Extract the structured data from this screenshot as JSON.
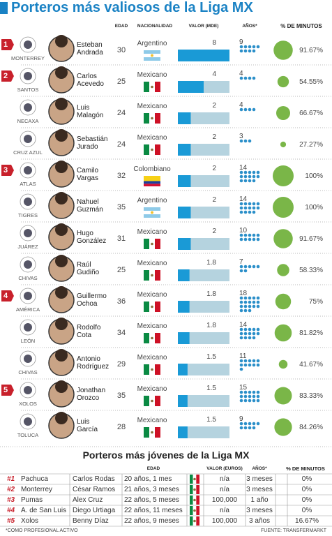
{
  "title": "Porteros más valiosos de la Liga MX",
  "headers": [
    "EDAD",
    "NACIONALIDAD",
    "VALOR (MDE)",
    "AÑOS*",
    "% DE MINUTOS"
  ],
  "players": [
    {
      "rank": 1,
      "club": "MONTERREY",
      "name": "Esteban Andrada",
      "age": 30,
      "nationality": "Argentino",
      "value": 8,
      "years": 9,
      "minutes": 91.67,
      "minutes_label": "91.67%"
    },
    {
      "rank": 2,
      "club": "SANTOS",
      "name": "Carlos Acevedo",
      "age": 25,
      "nationality": "Mexicano",
      "value": 4,
      "years": 4,
      "minutes": 54.55,
      "minutes_label": "54.55%"
    },
    {
      "club": "NECAXA",
      "name": "Luis Malagón",
      "age": 24,
      "nationality": "Mexicano",
      "value": 2,
      "years": 4,
      "minutes": 66.67,
      "minutes_label": "66.67%"
    },
    {
      "club": "CRUZ AZUL",
      "name": "Sebastián Jurado",
      "age": 24,
      "nationality": "Mexicano",
      "value": 2,
      "years": 3,
      "minutes": 27.27,
      "minutes_label": "27.27%"
    },
    {
      "rank": 3,
      "club": "ATLAS",
      "name": "Camilo Vargas",
      "age": 32,
      "nationality": "Colombiano",
      "value": 2,
      "years": 14,
      "minutes": 100,
      "minutes_label": "100%"
    },
    {
      "club": "TIGRES",
      "name": "Nahuel Guzmán",
      "age": 35,
      "nationality": "Argentino",
      "value": 2,
      "years": 14,
      "minutes": 100,
      "minutes_label": "100%"
    },
    {
      "club": "JUÁREZ",
      "name": "Hugo González",
      "age": 31,
      "nationality": "Mexicano",
      "value": 2,
      "years": 10,
      "minutes": 91.67,
      "minutes_label": "91.67%"
    },
    {
      "club": "CHIVAS",
      "name": "Raúl Gudiño",
      "age": 25,
      "nationality": "Mexicano",
      "value": 1.8,
      "years": 7,
      "minutes": 58.33,
      "minutes_label": "58.33%"
    },
    {
      "rank": 4,
      "club": "AMÉRICA",
      "name": "Guillermo Ochoa",
      "age": 36,
      "nationality": "Mexicano",
      "value": 1.8,
      "years": 18,
      "minutes": 75,
      "minutes_label": "75%"
    },
    {
      "club": "LEÓN",
      "name": "Rodolfo Cota",
      "age": 34,
      "nationality": "Mexicano",
      "value": 1.8,
      "years": 14,
      "minutes": 81.82,
      "minutes_label": "81.82%"
    },
    {
      "club": "CHIVAS",
      "name": "Antonio Rodríguez",
      "age": 29,
      "nationality": "Mexicano",
      "value": 1.5,
      "years": 11,
      "minutes": 41.67,
      "minutes_label": "41.67%"
    },
    {
      "rank": 5,
      "club": "XOLOS",
      "name": "Jonathan Orozco",
      "age": 35,
      "nationality": "Mexicano",
      "value": 1.5,
      "years": 15,
      "minutes": 83.33,
      "minutes_label": "83.33%"
    },
    {
      "club": "TOLUCA",
      "name": "Luis García",
      "age": 28,
      "nationality": "Mexicano",
      "value": 1.5,
      "years": 9,
      "minutes": 84.26,
      "minutes_label": "84.26%"
    }
  ],
  "young": {
    "title": "Porteros más jóvenes de la Liga MX",
    "headers": [
      "EDAD",
      "VALOR (EUROS)",
      "AÑOS*",
      "% DE MINUTOS"
    ],
    "rows": [
      [
        "#1",
        "Pachuca",
        "Carlos Rodas",
        "20 años, 1 mes",
        "n/a",
        "3 meses",
        "0%"
      ],
      [
        "#2",
        "Monterrey",
        "César Ramos",
        "21 años, 3 meses",
        "n/a",
        "3 meses",
        "0%"
      ],
      [
        "#3",
        "Pumas",
        "Alex Cruz",
        "22 años, 5 meses",
        "100,000",
        "1 año",
        "0%"
      ],
      [
        "#4",
        "A. de San Luis",
        "Diego Urtiaga",
        "22 años, 11 meses",
        "n/a",
        "3 meses",
        "0%"
      ],
      [
        "#5",
        "Xolos",
        "Benny Díaz",
        "22 años, 9 meses",
        "100,000",
        "3 años",
        "16.67%"
      ]
    ]
  },
  "footnote": "*COMO PROFESIONAL ACTIVO",
  "source": "FUENTE: TRANSFERMARKT"
}
